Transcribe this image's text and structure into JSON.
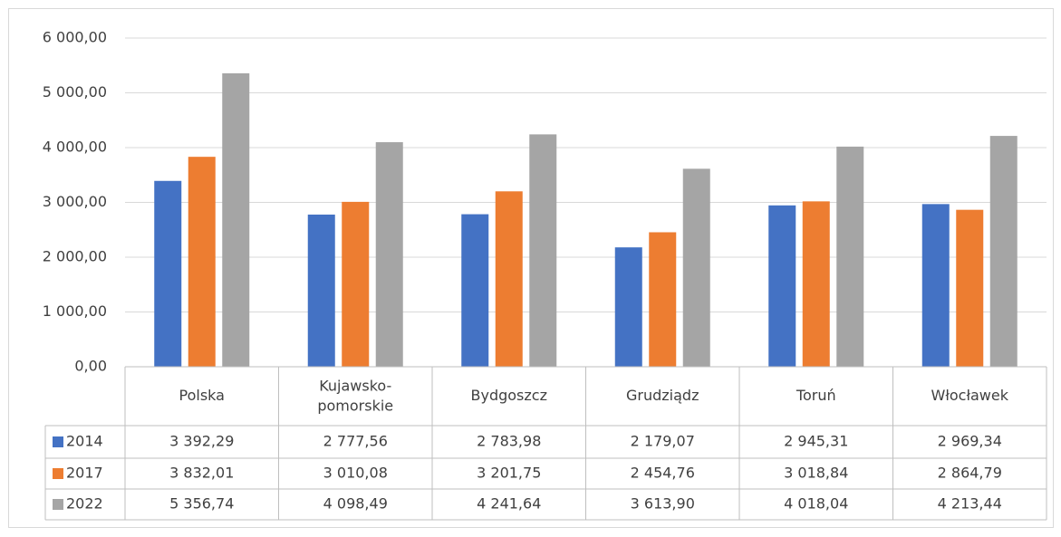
{
  "chart_data": {
    "type": "bar",
    "categories": [
      "Polska",
      "Kujawsko-pomorskie",
      "Bydgoszcz",
      "Grudziądz",
      "Toruń",
      "Włocławek"
    ],
    "series": [
      {
        "name": "2014",
        "color": "#4472c4",
        "values": [
          3392.29,
          2777.56,
          2783.98,
          2179.07,
          2945.31,
          2969.34
        ],
        "value_labels": [
          "3 392,29",
          "2 777,56",
          "2 783,98",
          "2 179,07",
          "2 945,31",
          "2 969,34"
        ]
      },
      {
        "name": "2017",
        "color": "#ed7d31",
        "values": [
          3832.01,
          3010.08,
          3201.75,
          2454.76,
          3018.84,
          2864.79
        ],
        "value_labels": [
          "3 832,01",
          "3 010,08",
          "3 201,75",
          "2 454,76",
          "3 018,84",
          "2 864,79"
        ]
      },
      {
        "name": "2022",
        "color": "#a5a5a5",
        "values": [
          5356.74,
          4098.49,
          4241.64,
          3613.9,
          4018.04,
          4213.44
        ],
        "value_labels": [
          "5 356,74",
          "4 098,49",
          "4 241,64",
          "3 613,90",
          "4 018,04",
          "4 213,44"
        ]
      }
    ],
    "ylim": [
      0,
      6000
    ],
    "yticks": [
      {
        "value": 0,
        "label": "0,00"
      },
      {
        "value": 1000,
        "label": "1 000,00"
      },
      {
        "value": 2000,
        "label": "2 000,00"
      },
      {
        "value": 3000,
        "label": "3 000,00"
      },
      {
        "value": 4000,
        "label": "4 000,00"
      },
      {
        "value": 5000,
        "label": "5 000,00"
      },
      {
        "value": 6000,
        "label": "6 000,00"
      }
    ],
    "grid": true,
    "data_table": true
  }
}
